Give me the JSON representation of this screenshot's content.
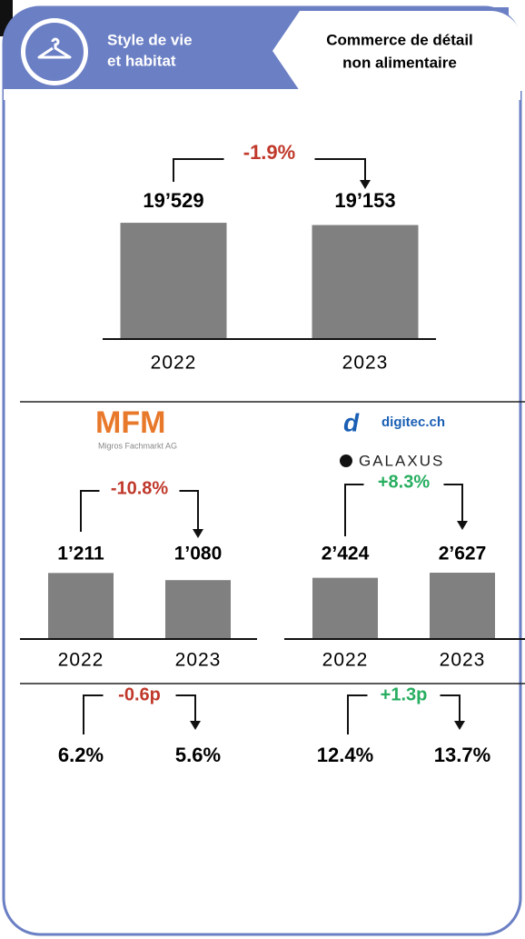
{
  "header": {
    "category": [
      "Style de vie",
      "et habitat"
    ],
    "sector": [
      "Commerce de détail",
      "non alimentaire"
    ]
  },
  "logos": {
    "mfm": "MFM",
    "mfm_sub": "Migros Fachmarkt AG",
    "digitec": "digitec.ch",
    "galaxus": "GALAXUS"
  },
  "chart_data": [
    {
      "type": "bar",
      "categories": [
        "2022",
        "2023"
      ],
      "values": [
        19529,
        19153
      ],
      "value_labels": [
        "19’529",
        "19’153"
      ],
      "annotation": "-1.9%",
      "annotation_color": "#c0392b",
      "color": "#808080",
      "ylim": [
        0,
        20000
      ]
    },
    {
      "type": "bar",
      "categories": [
        "2022",
        "2023"
      ],
      "values": [
        1211,
        1080
      ],
      "value_labels": [
        "1’211",
        "1’080"
      ],
      "annotation": "-10.8%",
      "annotation_color": "#c0392b",
      "color": "#808080",
      "ylim": [
        0,
        1250
      ]
    },
    {
      "type": "bar",
      "categories": [
        "2022",
        "2023"
      ],
      "values": [
        2424,
        2627
      ],
      "value_labels": [
        "2’424",
        "2’627"
      ],
      "annotation": "+8.3%",
      "annotation_color": "#27ae60",
      "color": "#808080",
      "ylim": [
        0,
        2700
      ]
    }
  ],
  "shares": [
    {
      "change": "-0.6p",
      "color": "#c0392b",
      "values": [
        "6.2%",
        "5.6%"
      ]
    },
    {
      "change": "+1.3p",
      "color": "#27ae60",
      "values": [
        "12.4%",
        "13.7%"
      ]
    }
  ]
}
